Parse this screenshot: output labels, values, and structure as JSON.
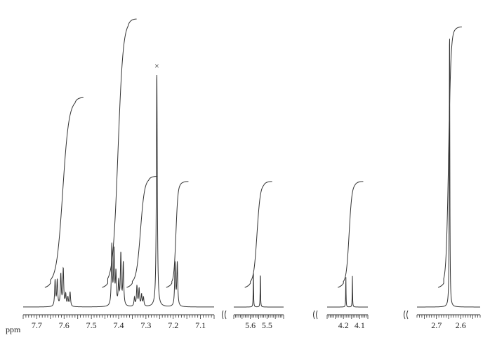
{
  "chart_data": {
    "type": "line",
    "title": "",
    "xlabel": "ppm",
    "ylabel": "",
    "x_axis_reversed": true,
    "grid": false,
    "legend": "none",
    "line_color": "#333333",
    "axis_breaks": [
      [
        7.05,
        5.7
      ],
      [
        5.4,
        4.3
      ],
      [
        4.05,
        2.78
      ]
    ],
    "panels": [
      {
        "xlim": [
          7.75,
          7.05
        ],
        "ticks": [
          "7.7",
          "7.6",
          "7.5",
          "7.4",
          "7.3",
          "7.2",
          "7.1"
        ],
        "peaks": [
          {
            "ppm": 7.633,
            "intensity": 0.09
          },
          {
            "ppm": 7.625,
            "intensity": 0.09
          },
          {
            "ppm": 7.612,
            "intensity": 0.11
          },
          {
            "ppm": 7.603,
            "intensity": 0.13
          },
          {
            "ppm": 7.594,
            "intensity": 0.04
          },
          {
            "ppm": 7.586,
            "intensity": 0.03
          },
          {
            "ppm": 7.578,
            "intensity": 0.05
          },
          {
            "ppm": 7.425,
            "intensity": 0.21
          },
          {
            "ppm": 7.417,
            "intensity": 0.19
          },
          {
            "ppm": 7.41,
            "intensity": 0.11
          },
          {
            "ppm": 7.4,
            "intensity": 0.08
          },
          {
            "ppm": 7.392,
            "intensity": 0.18
          },
          {
            "ppm": 7.383,
            "intensity": 0.15
          },
          {
            "ppm": 7.342,
            "intensity": 0.03
          },
          {
            "ppm": 7.333,
            "intensity": 0.07
          },
          {
            "ppm": 7.325,
            "intensity": 0.06
          },
          {
            "ppm": 7.316,
            "intensity": 0.04
          },
          {
            "ppm": 7.309,
            "intensity": 0.03
          },
          {
            "ppm": 7.26,
            "intensity": 0.82
          },
          {
            "ppm": 7.193,
            "intensity": 0.15
          },
          {
            "ppm": 7.185,
            "intensity": 0.15
          }
        ],
        "integrals": [
          {
            "from": 7.65,
            "to": 7.56,
            "height": 0.7
          },
          {
            "from": 7.44,
            "to": 7.365,
            "height": 1.0
          },
          {
            "from": 7.35,
            "to": 7.29,
            "height": 0.4
          },
          {
            "from": 7.205,
            "to": 7.175,
            "height": 0.38
          }
        ],
        "annotations": [
          {
            "ppm": 7.26,
            "text": "×"
          }
        ]
      },
      {
        "xlim": [
          5.7,
          5.4
        ],
        "ticks": [
          "5.6",
          "5.5"
        ],
        "peaks": [
          {
            "ppm": 5.582,
            "intensity": 0.125
          },
          {
            "ppm": 5.54,
            "intensity": 0.125
          }
        ],
        "integrals": [
          {
            "from": 5.6,
            "to": 5.52,
            "height": 0.38
          }
        ]
      },
      {
        "xlim": [
          4.3,
          4.05
        ],
        "ticks": [
          "4.2",
          "4.1"
        ],
        "peaks": [
          {
            "ppm": 4.185,
            "intensity": 0.11
          },
          {
            "ppm": 4.145,
            "intensity": 0.11
          }
        ],
        "integrals": [
          {
            "from": 4.2,
            "to": 4.13,
            "height": 0.38
          }
        ]
      },
      {
        "xlim": [
          2.78,
          2.52
        ],
        "ticks": [
          "2.7",
          "2.6"
        ],
        "peaks": [
          {
            "ppm": 2.646,
            "intensity": 1.0
          }
        ],
        "integrals": [
          {
            "from": 2.67,
            "to": 2.63,
            "height": 0.97
          }
        ]
      }
    ]
  }
}
